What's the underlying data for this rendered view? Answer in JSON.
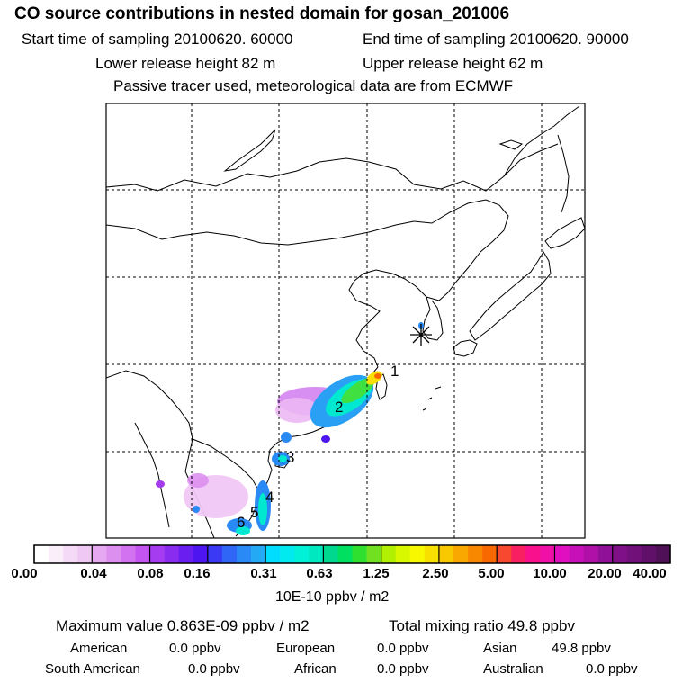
{
  "header": {
    "title": "CO  source contributions in nested domain for gosan_201006",
    "start_time": "Start time of sampling 20100620. 60000",
    "end_time": "End time of sampling 20100620. 90000",
    "lower_height": "Lower release height   82 m",
    "upper_height": "Upper release height   62 m",
    "tracer_note": "Passive tracer used, meteorological data are from ECMWF"
  },
  "map": {
    "station_marker": "gosan-station",
    "region_labels": [
      "1",
      "2",
      "3",
      "4",
      "5",
      "6"
    ]
  },
  "colorbar": {
    "ticks": [
      "0.00",
      "0.04",
      "0.08",
      "0.16",
      "0.31",
      "0.63",
      "1.25",
      "2.50",
      "5.00",
      "10.00",
      "20.00",
      "40.00"
    ],
    "unit": "10E-10 ppbv / m2",
    "colors": [
      [
        "#ffffff",
        "#fbeefb",
        "#f5daf7",
        "#efc8f3"
      ],
      [
        "#e6a8f0",
        "#dd8ff0",
        "#d372f0",
        "#c455f0"
      ],
      [
        "#a63cf0",
        "#8a2cf0",
        "#6a1ef0",
        "#4d16f0"
      ],
      [
        "#3a3af5",
        "#2f66f5",
        "#2a8af5",
        "#24aaf5"
      ],
      [
        "#00ddff",
        "#00eaf0",
        "#00f0d8",
        "#00e8c0"
      ],
      [
        "#00d890",
        "#00e060",
        "#30e030",
        "#70e020"
      ],
      [
        "#b0f000",
        "#d8f800",
        "#f8f800",
        "#f8e000"
      ],
      [
        "#f8c800",
        "#f8a800",
        "#f88800",
        "#f86800"
      ],
      [
        "#f84830",
        "#f82060",
        "#f8108c",
        "#f010a8"
      ],
      [
        "#e010c0",
        "#c810b8",
        "#b010a8",
        "#901098"
      ],
      [
        "#801088",
        "#701078",
        "#601068",
        "#501058"
      ]
    ]
  },
  "summary": {
    "max_label": "Maximum value  0.863E-09 ppbv / m2",
    "total_label": "Total mixing ratio       49.8 ppbv",
    "rows": [
      [
        {
          "name": "American",
          "value": "0.0 ppbv"
        },
        {
          "name": "European",
          "value": "0.0 ppbv"
        },
        {
          "name": "Asian",
          "value": "49.8 ppbv"
        }
      ],
      [
        {
          "name": "South American",
          "value": "0.0 ppbv"
        },
        {
          "name": "African",
          "value": "0.0 ppbv"
        },
        {
          "name": "Australian",
          "value": "0.0 ppbv"
        }
      ]
    ]
  }
}
